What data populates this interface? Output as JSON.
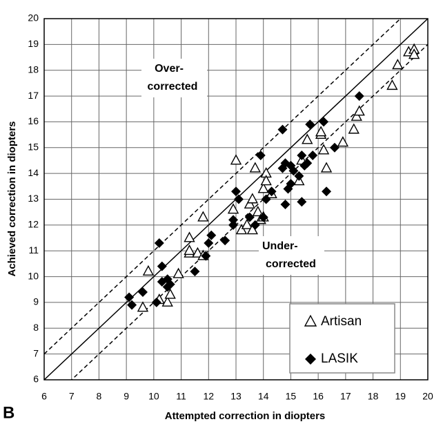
{
  "chart_data": {
    "type": "scatter",
    "xlabel": "Attempted correction in diopters",
    "ylabel": "Achieved correction in diopters",
    "panel_label": "B",
    "annotations": [
      "Over-",
      "corrected",
      "Under-",
      "corrected"
    ],
    "xlim": [
      6,
      20
    ],
    "ylim": [
      6,
      20
    ],
    "xticks": [
      6,
      7,
      8,
      9,
      10,
      11,
      12,
      13,
      14,
      15,
      16,
      17,
      18,
      19,
      20
    ],
    "yticks": [
      6,
      7,
      8,
      9,
      10,
      11,
      12,
      13,
      14,
      15,
      16,
      17,
      18,
      19,
      20
    ],
    "grid": true,
    "legend": "lower right",
    "reference_lines": [
      {
        "offset": 0,
        "style": "solid"
      },
      {
        "offset": 1,
        "style": "dashed"
      },
      {
        "offset": -1,
        "style": "dashed"
      }
    ],
    "series": [
      {
        "name": "Artisan",
        "marker": "triangle-open",
        "color": "#000000",
        "x": [
          9.6,
          9.8,
          10.2,
          10.5,
          10.6,
          10.9,
          11.3,
          11.3,
          11.3,
          11.6,
          11.8,
          11.8,
          12.9,
          13.0,
          13.2,
          13.4,
          13.5,
          13.6,
          13.6,
          13.7,
          13.8,
          13.9,
          14.0,
          14.0,
          14.1,
          14.1,
          14.3,
          15.3,
          15.4,
          15.6,
          16.1,
          16.1,
          16.2,
          16.3,
          16.9,
          17.3,
          17.4,
          17.5,
          18.7,
          18.9,
          19.3,
          19.5,
          19.5
        ],
        "values": [
          8.8,
          10.2,
          9.1,
          9.0,
          9.3,
          10.1,
          10.9,
          11.5,
          11.0,
          10.9,
          12.3,
          10.8,
          12.6,
          14.5,
          11.8,
          12.0,
          12.8,
          13.0,
          11.8,
          14.2,
          12.5,
          12.2,
          12.3,
          13.4,
          14.0,
          13.7,
          13.2,
          13.7,
          14.5,
          15.3,
          15.5,
          15.6,
          14.9,
          14.2,
          15.2,
          15.7,
          16.2,
          16.4,
          17.4,
          18.2,
          18.7,
          18.8,
          18.6
        ]
      },
      {
        "name": "LASIK",
        "marker": "diamond",
        "color": "#000000",
        "x": [
          9.1,
          9.2,
          9.6,
          10.1,
          10.2,
          10.3,
          10.3,
          10.5,
          10.5,
          10.6,
          11.5,
          11.9,
          12.0,
          12.1,
          12.6,
          12.9,
          12.9,
          13.0,
          13.1,
          13.5,
          13.7,
          13.9,
          14.0,
          14.1,
          14.3,
          14.7,
          14.7,
          14.8,
          14.8,
          14.9,
          15.0,
          15.0,
          15.1,
          15.3,
          15.4,
          15.4,
          15.5,
          15.6,
          15.7,
          15.8,
          16.2,
          16.3,
          16.6,
          17.5
        ],
        "values": [
          9.2,
          8.9,
          9.4,
          9.0,
          11.3,
          10.4,
          9.8,
          9.9,
          9.6,
          9.7,
          10.2,
          10.8,
          11.3,
          11.6,
          11.4,
          12.0,
          12.2,
          13.3,
          13.0,
          12.3,
          12.0,
          14.7,
          12.3,
          13.0,
          13.3,
          15.7,
          14.2,
          14.4,
          12.8,
          13.4,
          14.3,
          13.6,
          14.1,
          13.9,
          12.9,
          14.7,
          14.3,
          14.4,
          15.9,
          14.7,
          16.0,
          13.3,
          15.0,
          17.0
        ]
      }
    ]
  }
}
